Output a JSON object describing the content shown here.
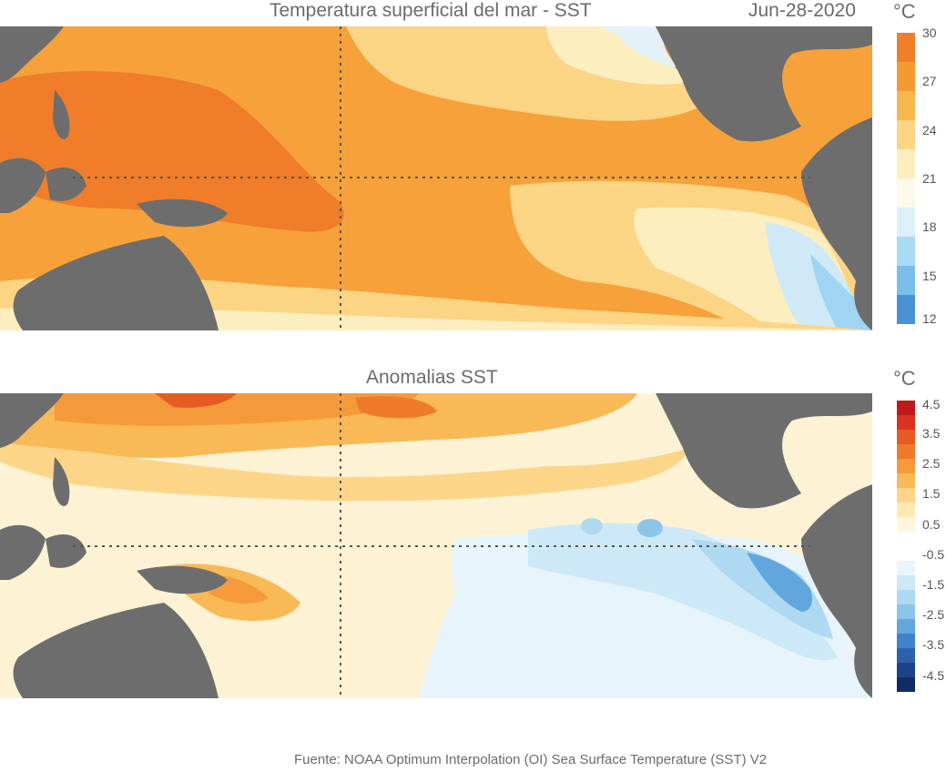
{
  "top_panel": {
    "title": "Temperatura superficial del mar - SST",
    "date": "Jun-28-2020",
    "unit": "°C",
    "colorbar_ticks": [
      "30",
      "27",
      "24",
      "21",
      "18",
      "15",
      "12"
    ],
    "colorbar_colors": [
      "#f07f2c",
      "#f59a33",
      "#f8b64e",
      "#fbd484",
      "#fdeec0",
      "#fdf9ea",
      "#dcf0f8",
      "#a9dbf4",
      "#79bfe9",
      "#4993d5"
    ]
  },
  "bottom_panel": {
    "title": "Anomalias SST",
    "unit": "°C",
    "colorbar_ticks": [
      "4.5",
      "3.5",
      "2.5",
      "1.5",
      "0.5",
      "-0.5",
      "-1.5",
      "-2.5",
      "-3.5",
      "-4.5"
    ],
    "colorbar_colors": [
      "#c01a1a",
      "#d9341f",
      "#e65a23",
      "#ef7b2a",
      "#f59a3a",
      "#f9b957",
      "#fcd589",
      "#fde9b3",
      "#fef6de",
      "#ffffff",
      "#ffffff",
      "#e7f4fb",
      "#cde9f7",
      "#aed9f1",
      "#8cc5ea",
      "#61a7dd",
      "#3f84c9",
      "#2d61ac",
      "#1d4388",
      "#122c64"
    ]
  },
  "footer": "Fuente: NOAA Optimum Interpolation (OI) Sea Surface Temperature (SST) V2"
}
